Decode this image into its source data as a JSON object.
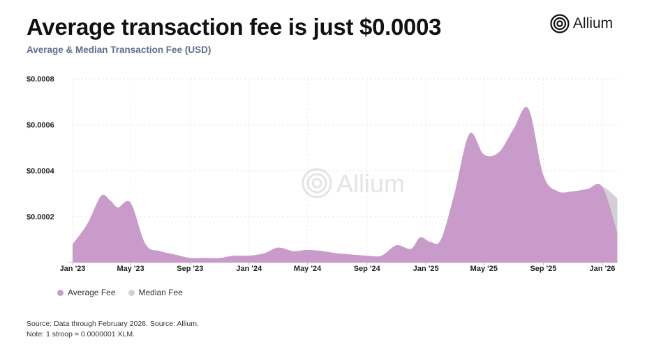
{
  "header": {
    "title": "Average transaction fee is just $0.0003",
    "subtitle": "Average & Median Transaction Fee (USD)"
  },
  "brand": {
    "name": "Allium",
    "icon": "allium-logo-icon"
  },
  "watermark": {
    "text": "Allium"
  },
  "footer": {
    "source": "Source: Data through February 2026. Source: Allium.",
    "note": "Note: 1 stroop = 0.0000001 XLM."
  },
  "colors": {
    "average_fee": "#c99bca",
    "median_fee": "#d3d0d3",
    "title": "#111111",
    "subtitle": "#5c6f8c"
  },
  "chart_data": {
    "type": "area",
    "title": "Average transaction fee is just $0.0003",
    "subtitle": "Average & Median Transaction Fee (USD)",
    "xlabel": "",
    "ylabel": "",
    "x_tick_labels": [
      "Jan '23",
      "May '23",
      "Sep '23",
      "Jan '24",
      "May '24",
      "Sep '24",
      "Jan '25",
      "May '25",
      "Sep '25",
      "Jan '26"
    ],
    "y_tick_labels": [
      "$0.0008",
      "$0.0006",
      "$0.0004",
      "$0.0002"
    ],
    "y_ticks": [
      0.0008,
      0.0006,
      0.0004,
      0.0002
    ],
    "ylim": [
      0,
      0.0008
    ],
    "xlim": [
      "2023-01-01",
      "2026-02-01"
    ],
    "grid": true,
    "legend_position": "bottom-left",
    "series": [
      {
        "name": "Average Fee",
        "color": "#c99bca",
        "points": [
          [
            "2023-01-01",
            8e-05
          ],
          [
            "2023-02-01",
            0.00017
          ],
          [
            "2023-03-01",
            0.00029
          ],
          [
            "2023-03-20",
            0.00027
          ],
          [
            "2023-04-05",
            0.00024
          ],
          [
            "2023-05-01",
            0.00026
          ],
          [
            "2023-06-01",
            8e-05
          ],
          [
            "2023-07-01",
            5e-05
          ],
          [
            "2023-08-01",
            3.5e-05
          ],
          [
            "2023-09-01",
            2e-05
          ],
          [
            "2023-10-01",
            2e-05
          ],
          [
            "2023-11-01",
            2e-05
          ],
          [
            "2023-12-01",
            3e-05
          ],
          [
            "2024-01-01",
            3e-05
          ],
          [
            "2024-02-01",
            4e-05
          ],
          [
            "2024-03-01",
            6.5e-05
          ],
          [
            "2024-04-01",
            5e-05
          ],
          [
            "2024-05-01",
            5.5e-05
          ],
          [
            "2024-06-01",
            5e-05
          ],
          [
            "2024-07-01",
            4e-05
          ],
          [
            "2024-08-01",
            3.5e-05
          ],
          [
            "2024-09-01",
            3e-05
          ],
          [
            "2024-10-01",
            3e-05
          ],
          [
            "2024-11-01",
            7.5e-05
          ],
          [
            "2024-12-01",
            6e-05
          ],
          [
            "2024-12-20",
            0.00011
          ],
          [
            "2025-01-10",
            9e-05
          ],
          [
            "2025-02-01",
            0.0001
          ],
          [
            "2025-03-01",
            0.0003
          ],
          [
            "2025-04-01",
            0.00056
          ],
          [
            "2025-05-01",
            0.00047
          ],
          [
            "2025-06-01",
            0.00048
          ],
          [
            "2025-07-01",
            0.00058
          ],
          [
            "2025-08-01",
            0.00067
          ],
          [
            "2025-09-01",
            0.00038
          ],
          [
            "2025-10-01",
            0.00031
          ],
          [
            "2025-11-01",
            0.00031
          ],
          [
            "2025-12-01",
            0.00032
          ],
          [
            "2026-01-01",
            0.00033
          ],
          [
            "2026-02-01",
            0.00013
          ]
        ]
      },
      {
        "name": "Median Fee",
        "color": "#d3d0d3",
        "points": [
          [
            "2025-12-01",
            0.00032
          ],
          [
            "2026-01-01",
            0.00033
          ],
          [
            "2026-02-01",
            0.00028
          ]
        ]
      }
    ]
  }
}
